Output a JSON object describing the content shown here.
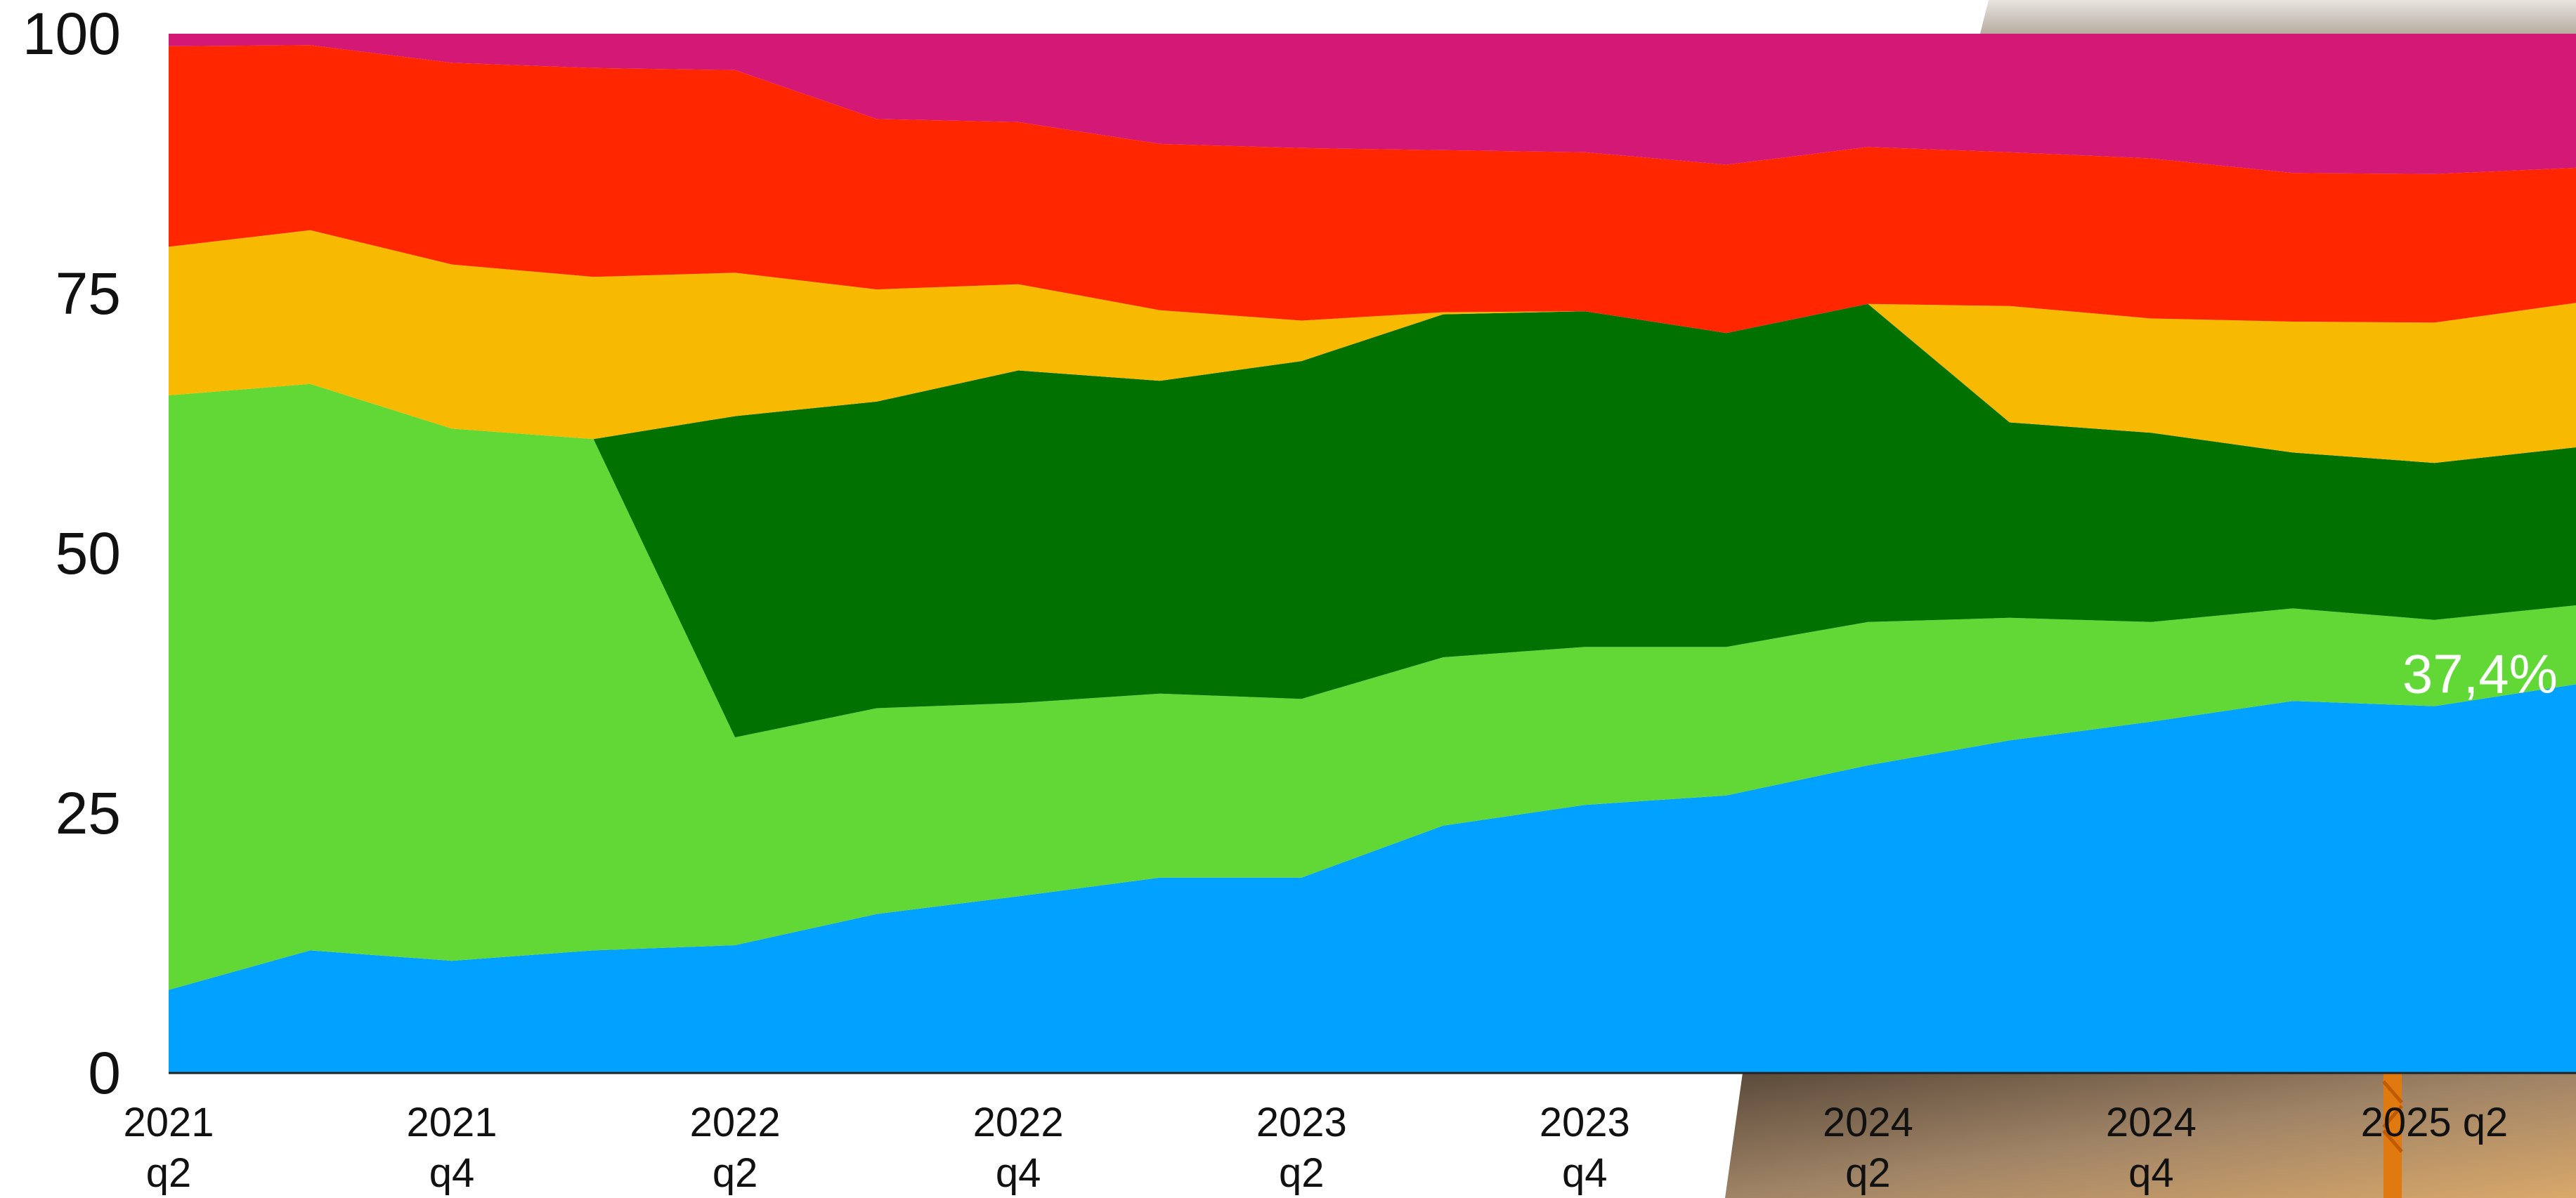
{
  "chart_data": {
    "type": "area",
    "stacked": true,
    "ylim": [
      0,
      100
    ],
    "yticks": [
      0,
      25,
      50,
      75,
      100
    ],
    "x_tick_labels": [
      [
        "2021",
        "q2"
      ],
      [
        "2021",
        "q4"
      ],
      [
        "2022",
        "q2"
      ],
      [
        "2022",
        "q4"
      ],
      [
        "2023",
        "q2"
      ],
      [
        "2023",
        "q4"
      ],
      [
        "2024",
        "q2"
      ],
      [
        "2024",
        "q4"
      ],
      [
        "2025 q2"
      ]
    ],
    "x_points": 18,
    "colors": [
      "#00A1FF",
      "#61D836",
      "#017100",
      "#F8BA00",
      "#FF2600",
      "#D41876"
    ],
    "series": [
      {
        "values": [
          8,
          11.8,
          10.8,
          11.8,
          12.3,
          15.3,
          17,
          18.8,
          18.8,
          23.8,
          25.8,
          26.7,
          29.6,
          32,
          33.8,
          35.8,
          35.3,
          37.4
        ]
      },
      {
        "values": [
          57.2,
          54.5,
          51.2,
          49.2,
          20,
          19.8,
          18.6,
          17.7,
          17.2,
          16.2,
          15.2,
          14.3,
          13.8,
          11.8,
          9.6,
          8.9,
          8.3,
          7.6
        ]
      },
      {
        "values": [
          0,
          0,
          0,
          0,
          30.9,
          29.5,
          32,
          30.1,
          32.5,
          33,
          32.3,
          30.2,
          30.6,
          18.8,
          18.2,
          15,
          15.1,
          15.2
        ]
      },
      {
        "values": [
          14.3,
          14.8,
          15.8,
          15.6,
          13.8,
          10.8,
          8.3,
          6.8,
          3.9,
          0.2,
          0,
          0,
          0,
          11.2,
          11,
          12.6,
          13.5,
          13.9
        ]
      },
      {
        "values": [
          19.3,
          17.8,
          19.4,
          20.1,
          19.5,
          16.4,
          15.6,
          16,
          16.6,
          15.6,
          15.3,
          16.2,
          15.1,
          14.8,
          15.4,
          14.3,
          14.3,
          13
        ]
      },
      {
        "values": [
          1.2,
          1.1,
          2.8,
          3.3,
          3.5,
          8.2,
          8.5,
          10.6,
          11,
          11.2,
          11.4,
          12.6,
          10.9,
          11.4,
          12,
          13.4,
          13.5,
          12.9
        ]
      }
    ],
    "annotation": {
      "text": "37,4%",
      "series_index": 0,
      "point_index": 17
    },
    "grid": false,
    "legend": "none"
  }
}
